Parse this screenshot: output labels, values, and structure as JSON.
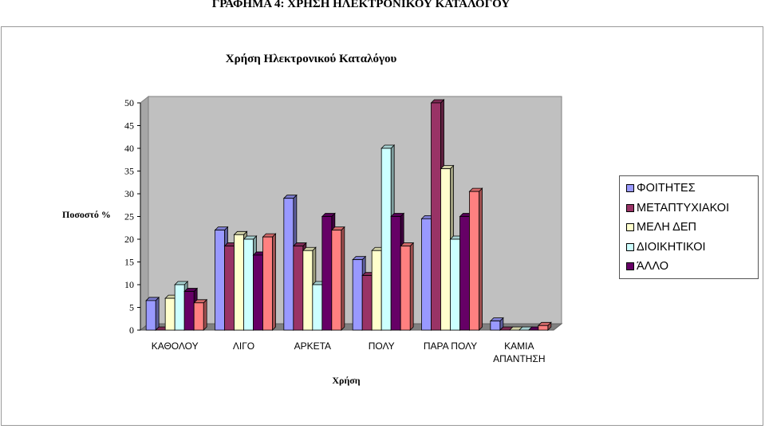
{
  "page": {
    "doc_title": "ΓΡΑΦΗΜΑ 4: ΧΡΗΣΗ ΗΛΕΚΤΡΟΝΙΚΟΥ ΚΑΤΑΛΟΓΟΥ"
  },
  "chart_data": {
    "type": "bar",
    "title": "Χρήση Ηλεκτρονικού Καταλόγου",
    "xlabel": "Χρήση",
    "ylabel": "Ποσοστό %",
    "ylim": [
      0,
      50
    ],
    "yticks": [
      0,
      5,
      10,
      15,
      20,
      25,
      30,
      35,
      40,
      45,
      50
    ],
    "grid": false,
    "legend_position": "right",
    "categories": [
      [
        "ΚΑΘΟΛΟΥ"
      ],
      [
        "ΛΙΓΟ"
      ],
      [
        "ΑΡΚΕΤΑ"
      ],
      [
        "ΠΟΛΥ"
      ],
      [
        "ΠΑΡΑ ΠΟΛΥ"
      ],
      [
        "ΚΑΜΙΑ",
        "ΑΠΑΝΤΗΣΗ"
      ]
    ],
    "series": [
      {
        "name": "ΦΟΙΤΗΤΕΣ",
        "color": "#9999ff",
        "values": [
          6.5,
          22,
          29,
          15.5,
          24.5,
          2
        ]
      },
      {
        "name": "ΜΕΤΑΠΤΥΧΙΑΚΟΙ",
        "color": "#993366",
        "values": [
          0,
          18.5,
          18.5,
          12,
          50,
          0
        ]
      },
      {
        "name": "ΜΕΛΗ ΔΕΠ",
        "color": "#ffffcc",
        "values": [
          7,
          21,
          17.5,
          17.5,
          35.5,
          0
        ]
      },
      {
        "name": "ΔΙΟΙΚΗΤΙΚΟΙ",
        "color": "#ccffff",
        "values": [
          10,
          20,
          10,
          40,
          20,
          0
        ]
      },
      {
        "name": "ΆΛΛΟ",
        "color": "#660066",
        "values": [
          8.5,
          16.5,
          25,
          25,
          25,
          0
        ]
      },
      {
        "name": "",
        "color": "#ff8080",
        "values": [
          6,
          20.5,
          22,
          18.5,
          30.5,
          1
        ]
      }
    ]
  }
}
